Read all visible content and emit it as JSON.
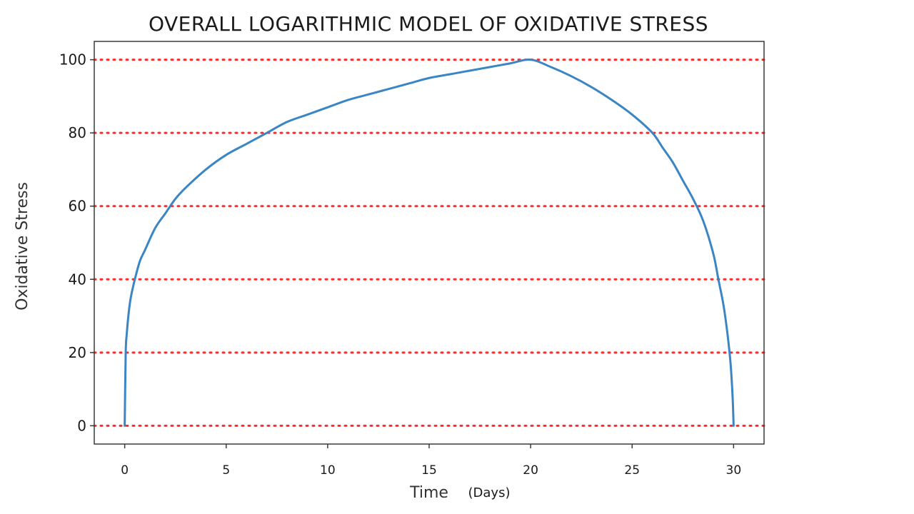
{
  "chart_data": {
    "type": "line",
    "title": "OVERALL LOGARITHMIC MODEL OF OXIDATIVE STRESS",
    "xlabel": "Time",
    "xlabel_unit": "(Days)",
    "ylabel": "Oxidative Stress",
    "xlim": [
      -1.5,
      31.5
    ],
    "ylim": [
      -5,
      105
    ],
    "x_ticks": [
      0,
      5,
      10,
      15,
      20,
      25,
      30
    ],
    "y_ticks": [
      0,
      20,
      40,
      60,
      80,
      100
    ],
    "grid": "horizontal red dotted lines",
    "colors": {
      "line": "#3a86c4",
      "grid": "#ff2a2a",
      "axes": "#3a3a3a"
    },
    "series": [
      {
        "x": [
          0,
          0.05,
          0.1,
          0.2,
          0.3,
          0.5,
          0.75,
          1,
          1.5,
          2,
          2.5,
          3,
          4,
          5,
          6,
          7,
          8,
          9,
          10,
          11,
          12,
          13,
          14,
          15,
          16,
          17,
          18,
          19,
          20,
          21,
          22,
          23,
          24,
          25,
          26,
          26.5,
          27,
          27.5,
          28,
          28.5,
          29,
          29.25,
          29.5,
          29.7,
          29.85,
          29.95,
          30
        ],
        "y": [
          0,
          20,
          25,
          31,
          35,
          40,
          45,
          48,
          54,
          58,
          62,
          65,
          70,
          74,
          77,
          80,
          83,
          85,
          87,
          89,
          90.5,
          92,
          93.5,
          95,
          96,
          97,
          98,
          99,
          100,
          98,
          95.5,
          92.5,
          89,
          85,
          80,
          76,
          72,
          67,
          62,
          56,
          47,
          40,
          33,
          25,
          17,
          8,
          0
        ]
      }
    ]
  }
}
